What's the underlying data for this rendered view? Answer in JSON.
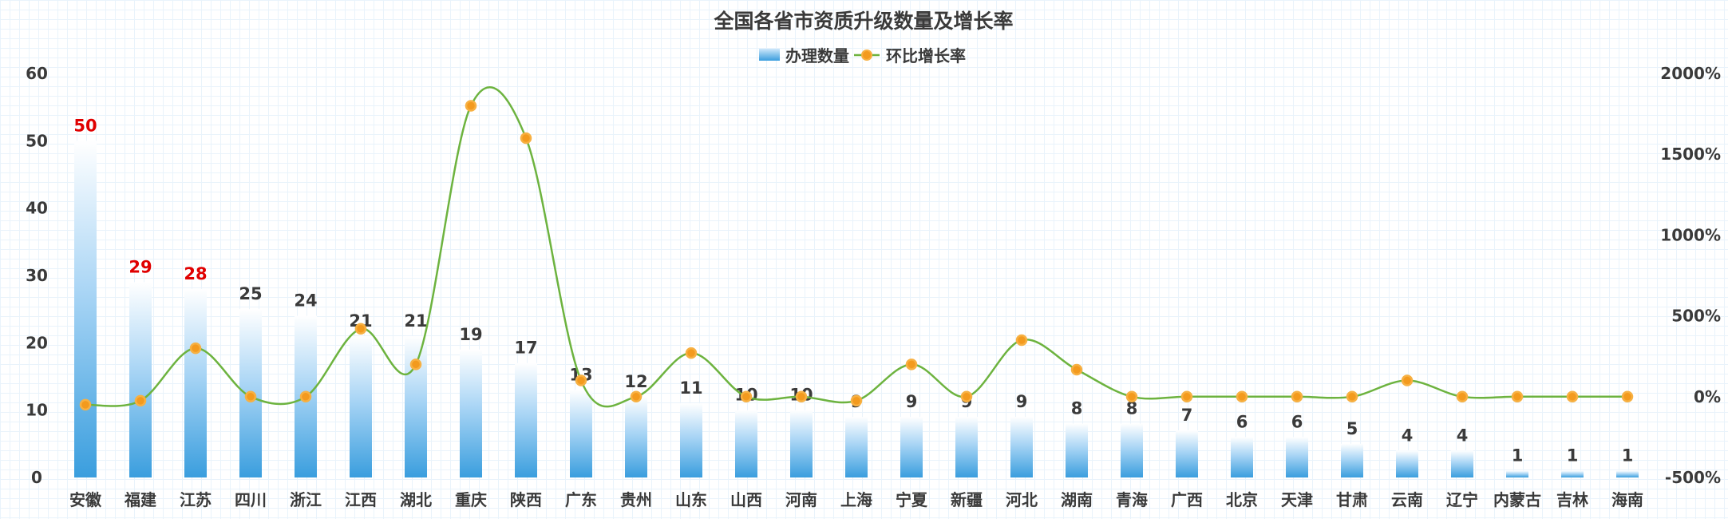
{
  "chart_data": {
    "type": "bar",
    "title": "全国各省市资质升级数量及增长率",
    "categories": [
      "安徽",
      "福建",
      "江苏",
      "四川",
      "浙江",
      "江西",
      "湖北",
      "重庆",
      "陕西",
      "广东",
      "贵州",
      "山东",
      "山西",
      "河南",
      "上海",
      "宁夏",
      "新疆",
      "河北",
      "湖南",
      "青海",
      "广西",
      "北京",
      "天津",
      "甘肃",
      "云南",
      "辽宁",
      "内蒙古",
      "吉林",
      "海南"
    ],
    "series": [
      {
        "name": "办理数量",
        "type": "bar",
        "axis": "left",
        "values": [
          50,
          29,
          28,
          25,
          24,
          21,
          21,
          19,
          17,
          13,
          12,
          11,
          10,
          10,
          9,
          9,
          9,
          9,
          8,
          8,
          7,
          6,
          6,
          5,
          4,
          4,
          1,
          1,
          1
        ]
      },
      {
        "name": "环比增长率",
        "type": "line",
        "axis": "right",
        "values": [
          -50,
          -25,
          300,
          0,
          0,
          420,
          200,
          1800,
          1600,
          100,
          0,
          270,
          0,
          0,
          -25,
          200,
          0,
          350,
          167,
          0,
          0,
          0,
          0,
          0,
          100,
          0,
          0,
          0,
          0
        ]
      }
    ],
    "y_left": {
      "range": [
        0,
        60
      ],
      "ticks": [
        0,
        10,
        20,
        30,
        40,
        50,
        60
      ]
    },
    "y_right": {
      "range": [
        -500,
        2000
      ],
      "ticks": [
        "-500%",
        "0%",
        "500%",
        "1000%",
        "1500%",
        "2000%"
      ]
    },
    "legend_position": "top-center",
    "highlight_top_n": 3,
    "colors": {
      "bar_top": "#ffffff",
      "bar_bottom": "#3a9ede",
      "line": "#6db33f",
      "marker": "#f39a1e",
      "marker_edge": "#f7b042",
      "label_highlight": "#e00000",
      "label_normal": "#3a3a3a"
    }
  }
}
